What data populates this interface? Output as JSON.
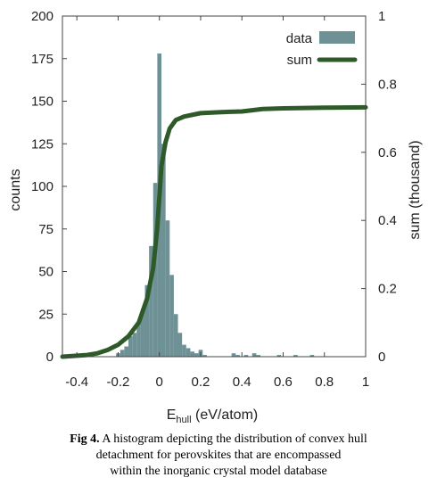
{
  "chart_data": {
    "type": "bar",
    "xlabel_main": "E",
    "xlabel_sub": "hull",
    "xlabel_tail": " (eV/atom)",
    "ylabel": "counts",
    "y2label": "sum (thousand)",
    "xlim": [
      -0.47,
      1.0
    ],
    "ylim": [
      0,
      200
    ],
    "y2lim": [
      0,
      1
    ],
    "xticks": [
      -0.4,
      -0.2,
      0,
      0.2,
      0.4,
      0.6,
      0.8,
      1
    ],
    "xtick_labels": [
      "-0.4",
      "-0.2",
      "0",
      "0.2",
      "0.4",
      "0.6",
      "0.8",
      "1"
    ],
    "yticks": [
      0,
      25,
      50,
      75,
      100,
      125,
      150,
      175,
      200
    ],
    "y2ticks": [
      0,
      0.2,
      0.4,
      0.6,
      0.8,
      1
    ],
    "y2tick_labels": [
      "0",
      "0.2",
      "0.4",
      "0.6",
      "0.8",
      "1"
    ],
    "bin_width": 0.02,
    "series": [
      {
        "name": "data",
        "color": "#6e9196",
        "bins": [
          [
            -0.2,
            2
          ],
          [
            -0.18,
            4
          ],
          [
            -0.16,
            6
          ],
          [
            -0.14,
            12
          ],
          [
            -0.12,
            14
          ],
          [
            -0.1,
            20
          ],
          [
            -0.08,
            28
          ],
          [
            -0.06,
            42
          ],
          [
            -0.04,
            65
          ],
          [
            -0.02,
            102
          ],
          [
            0.0,
            178
          ],
          [
            0.02,
            125
          ],
          [
            0.04,
            80
          ],
          [
            0.06,
            48
          ],
          [
            0.08,
            25
          ],
          [
            0.1,
            14
          ],
          [
            0.12,
            7
          ],
          [
            0.14,
            5
          ],
          [
            0.16,
            3
          ],
          [
            0.18,
            2
          ],
          [
            0.2,
            4
          ],
          [
            0.22,
            1
          ],
          [
            0.36,
            2
          ],
          [
            0.38,
            1
          ],
          [
            0.42,
            1
          ],
          [
            0.46,
            2
          ],
          [
            0.48,
            1
          ],
          [
            0.58,
            1
          ],
          [
            0.66,
            1
          ],
          [
            0.74,
            1
          ]
        ]
      },
      {
        "name": "sum",
        "color": "#2e5a2a",
        "points": [
          [
            -0.47,
            0.0
          ],
          [
            -0.35,
            0.005
          ],
          [
            -0.3,
            0.01
          ],
          [
            -0.25,
            0.02
          ],
          [
            -0.2,
            0.035
          ],
          [
            -0.15,
            0.06
          ],
          [
            -0.1,
            0.1
          ],
          [
            -0.06,
            0.17
          ],
          [
            -0.03,
            0.26
          ],
          [
            -0.01,
            0.38
          ],
          [
            0.0,
            0.47
          ],
          [
            0.01,
            0.56
          ],
          [
            0.03,
            0.63
          ],
          [
            0.05,
            0.67
          ],
          [
            0.08,
            0.695
          ],
          [
            0.12,
            0.705
          ],
          [
            0.2,
            0.715
          ],
          [
            0.3,
            0.718
          ],
          [
            0.4,
            0.72
          ],
          [
            0.5,
            0.727
          ],
          [
            0.6,
            0.729
          ],
          [
            0.8,
            0.731
          ],
          [
            1.0,
            0.732
          ]
        ]
      }
    ],
    "legend": {
      "position": "top-right"
    }
  },
  "caption": {
    "label": "Fig 4.",
    "line1": " A histogram depicting the distribution of convex hull",
    "line2": "detachment for perovskites that are encompassed",
    "line3": "within the inorganic crystal model database"
  }
}
